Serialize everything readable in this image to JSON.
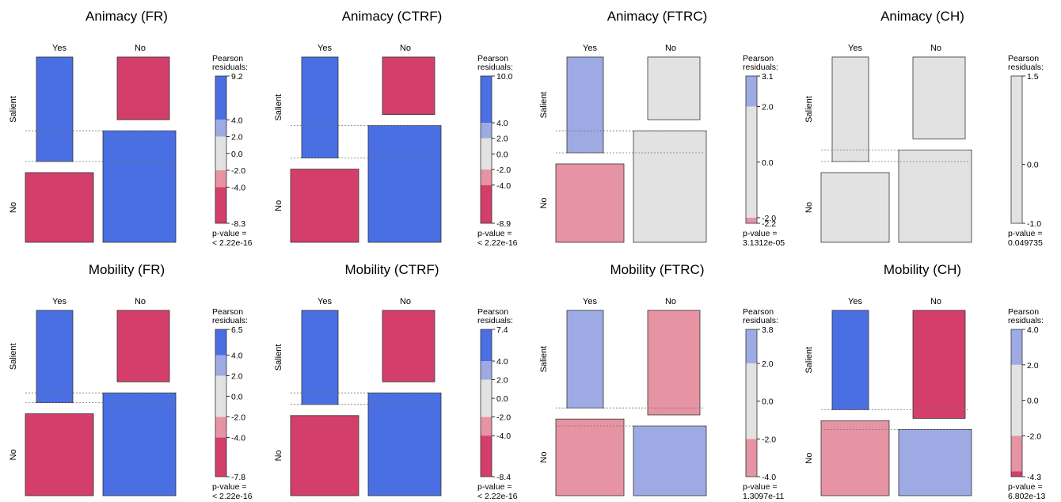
{
  "colors": {
    "strong_pos": "#4a6fe3",
    "weak_pos": "#9eaae4",
    "neutral": "#e2e2e2",
    "weak_neg": "#e693a4",
    "strong_neg": "#d33f6a",
    "border": "#333333"
  },
  "common": {
    "row_labels": [
      "Salient",
      "No"
    ],
    "col_labels": [
      "Yes",
      "No"
    ],
    "legend_title": "Pearson\nresiduals:",
    "pvalue_label": "p-value ="
  },
  "chart_data": [
    {
      "type": "mosaic",
      "title": "Animacy (FR)",
      "rows": [
        "Salient",
        "No"
      ],
      "columns": [
        "Yes",
        "No"
      ],
      "proportions": {
        "Yes": {
          "Salient": 0.6,
          "No": 0.4
        },
        "No": {
          "Salient": 0.36,
          "No": 0.64
        }
      },
      "cells": [
        {
          "row": "Salient",
          "col": "Yes",
          "residual": "strong_pos"
        },
        {
          "row": "Salient",
          "col": "No",
          "residual": "strong_neg"
        },
        {
          "row": "No",
          "col": "Yes",
          "residual": "strong_neg"
        },
        {
          "row": "No",
          "col": "No",
          "residual": "strong_pos"
        }
      ],
      "legend": {
        "max": 9.2,
        "min": -8.3,
        "ticks": [
          "9.2",
          "4.0",
          "2.0",
          "0.0",
          "-2.0",
          "-4.0",
          "-8.3"
        ]
      },
      "pvalue": "< 2.22e-16"
    },
    {
      "type": "mosaic",
      "title": "Animacy (CTRF)",
      "rows": [
        "Salient",
        "No"
      ],
      "columns": [
        "Yes",
        "No"
      ],
      "proportions": {
        "Yes": {
          "Salient": 0.58,
          "No": 0.42
        },
        "No": {
          "Salient": 0.33,
          "No": 0.67
        }
      },
      "cells": [
        {
          "row": "Salient",
          "col": "Yes",
          "residual": "strong_pos"
        },
        {
          "row": "Salient",
          "col": "No",
          "residual": "strong_neg"
        },
        {
          "row": "No",
          "col": "Yes",
          "residual": "strong_neg"
        },
        {
          "row": "No",
          "col": "No",
          "residual": "strong_pos"
        }
      ],
      "legend": {
        "max": 10.0,
        "min": -8.9,
        "ticks": [
          "10.0",
          "4.0",
          "2.0",
          "0.0",
          "-2.0",
          "-4.0",
          "-8.9"
        ]
      },
      "pvalue": "< 2.22e-16"
    },
    {
      "type": "mosaic",
      "title": "Animacy (FTRC)",
      "rows": [
        "Salient",
        "No"
      ],
      "columns": [
        "Yes",
        "No"
      ],
      "proportions": {
        "Yes": {
          "Salient": 0.55,
          "No": 0.45
        },
        "No": {
          "Salient": 0.36,
          "No": 0.64
        }
      },
      "cells": [
        {
          "row": "Salient",
          "col": "Yes",
          "residual": "weak_pos"
        },
        {
          "row": "Salient",
          "col": "No",
          "residual": "neutral"
        },
        {
          "row": "No",
          "col": "Yes",
          "residual": "weak_neg"
        },
        {
          "row": "No",
          "col": "No",
          "residual": "neutral"
        }
      ],
      "legend": {
        "max": 3.1,
        "min": -2.2,
        "ticks": [
          "3.1",
          "2.0",
          "0.0",
          "-2.0",
          "-2.2"
        ]
      },
      "pvalue": "3.1312e-05"
    },
    {
      "type": "mosaic",
      "title": "Animacy (CH)",
      "rows": [
        "Salient",
        "No"
      ],
      "columns": [
        "Yes",
        "No"
      ],
      "proportions": {
        "Yes": {
          "Salient": 0.6,
          "No": 0.4
        },
        "No": {
          "Salient": 0.47,
          "No": 0.53
        }
      },
      "cells": [
        {
          "row": "Salient",
          "col": "Yes",
          "residual": "neutral"
        },
        {
          "row": "Salient",
          "col": "No",
          "residual": "neutral"
        },
        {
          "row": "No",
          "col": "Yes",
          "residual": "neutral"
        },
        {
          "row": "No",
          "col": "No",
          "residual": "neutral"
        }
      ],
      "legend": {
        "max": 1.5,
        "min": -1.0,
        "ticks": [
          "1.5",
          "0.0",
          "-1.0"
        ]
      },
      "pvalue": "0.049735"
    },
    {
      "type": "mosaic",
      "title": "Mobility (FR)",
      "rows": [
        "Salient",
        "No"
      ],
      "columns": [
        "Yes",
        "No"
      ],
      "proportions": {
        "Yes": {
          "Salient": 0.53,
          "No": 0.47
        },
        "No": {
          "Salient": 0.41,
          "No": 0.59
        }
      },
      "cells": [
        {
          "row": "Salient",
          "col": "Yes",
          "residual": "strong_pos"
        },
        {
          "row": "Salient",
          "col": "No",
          "residual": "strong_neg"
        },
        {
          "row": "No",
          "col": "Yes",
          "residual": "strong_neg"
        },
        {
          "row": "No",
          "col": "No",
          "residual": "strong_pos"
        }
      ],
      "legend": {
        "max": 6.5,
        "min": -7.8,
        "ticks": [
          "6.5",
          "4.0",
          "2.0",
          "0.0",
          "-2.0",
          "-4.0",
          "-7.8"
        ]
      },
      "pvalue": "< 2.22e-16"
    },
    {
      "type": "mosaic",
      "title": "Mobility (CTRF)",
      "rows": [
        "Salient",
        "No"
      ],
      "columns": [
        "Yes",
        "No"
      ],
      "proportions": {
        "Yes": {
          "Salient": 0.54,
          "No": 0.46
        },
        "No": {
          "Salient": 0.41,
          "No": 0.59
        }
      },
      "cells": [
        {
          "row": "Salient",
          "col": "Yes",
          "residual": "strong_pos"
        },
        {
          "row": "Salient",
          "col": "No",
          "residual": "strong_neg"
        },
        {
          "row": "No",
          "col": "Yes",
          "residual": "strong_neg"
        },
        {
          "row": "No",
          "col": "No",
          "residual": "strong_pos"
        }
      ],
      "legend": {
        "max": 7.4,
        "min": -8.4,
        "ticks": [
          "7.4",
          "4.0",
          "2.0",
          "0.0",
          "-2.0",
          "-4.0",
          "-8.4"
        ]
      },
      "pvalue": "< 2.22e-16"
    },
    {
      "type": "mosaic",
      "title": "Mobility (FTRC)",
      "rows": [
        "Salient",
        "No"
      ],
      "columns": [
        "Yes",
        "No"
      ],
      "proportions": {
        "Yes": {
          "Salient": 0.56,
          "No": 0.44
        },
        "No": {
          "Salient": 0.6,
          "No": 0.4
        }
      },
      "cells": [
        {
          "row": "Salient",
          "col": "Yes",
          "residual": "weak_pos"
        },
        {
          "row": "Salient",
          "col": "No",
          "residual": "weak_neg"
        },
        {
          "row": "No",
          "col": "Yes",
          "residual": "weak_neg"
        },
        {
          "row": "No",
          "col": "No",
          "residual": "weak_pos"
        }
      ],
      "legend": {
        "max": 3.8,
        "min": -4.0,
        "ticks": [
          "3.8",
          "2.0",
          "0.0",
          "-2.0",
          "-4.0"
        ]
      },
      "pvalue": "1.3097e-11"
    },
    {
      "type": "mosaic",
      "title": "Mobility (CH)",
      "rows": [
        "Salient",
        "No"
      ],
      "columns": [
        "Yes",
        "No"
      ],
      "proportions": {
        "Yes": {
          "Salient": 0.57,
          "No": 0.43
        },
        "No": {
          "Salient": 0.62,
          "No": 0.38
        }
      },
      "cells": [
        {
          "row": "Salient",
          "col": "Yes",
          "residual": "strong_pos"
        },
        {
          "row": "Salient",
          "col": "No",
          "residual": "strong_neg"
        },
        {
          "row": "No",
          "col": "Yes",
          "residual": "weak_neg"
        },
        {
          "row": "No",
          "col": "No",
          "residual": "weak_pos"
        }
      ],
      "legend": {
        "max": 4.0,
        "min": -4.3,
        "ticks": [
          "4.0",
          "2.0",
          "0.0",
          "-2.0",
          "-4.3"
        ]
      },
      "pvalue": "6.802e-13"
    }
  ]
}
